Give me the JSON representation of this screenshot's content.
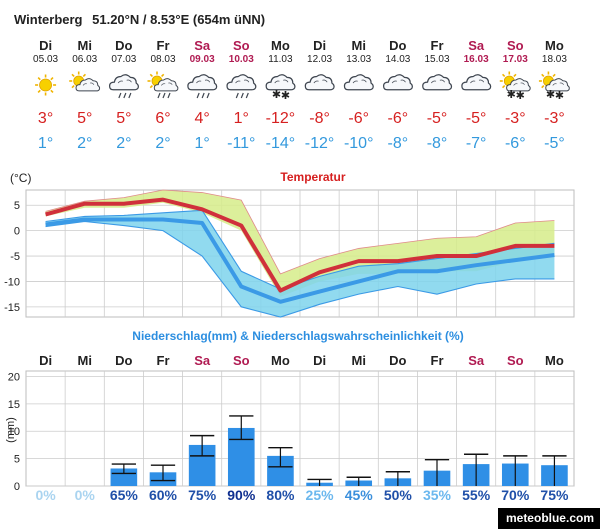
{
  "header": {
    "location": "Winterberg",
    "coords": "51.20°N / 8.53°E (654m üNN)"
  },
  "days": [
    {
      "name": "Di",
      "date": "05.03",
      "weekend": false,
      "icon": "sun-icon",
      "max": "3°",
      "min": "1°",
      "max_color": "#d62020",
      "min_color": "#3399dd"
    },
    {
      "name": "Mi",
      "date": "06.03",
      "weekend": false,
      "icon": "sun-cloud-icon",
      "max": "5°",
      "min": "2°",
      "max_color": "#d62020",
      "min_color": "#3399dd"
    },
    {
      "name": "Do",
      "date": "07.03",
      "weekend": false,
      "icon": "cloud-rain-icon",
      "max": "5°",
      "min": "2°",
      "max_color": "#d62020",
      "min_color": "#3399dd"
    },
    {
      "name": "Fr",
      "date": "08.03",
      "weekend": false,
      "icon": "sun-cloud-rain-icon",
      "max": "6°",
      "min": "2°",
      "max_color": "#d62020",
      "min_color": "#3399dd"
    },
    {
      "name": "Sa",
      "date": "09.03",
      "weekend": true,
      "icon": "cloud-rain-icon",
      "max": "4°",
      "min": "1°",
      "max_color": "#d62020",
      "min_color": "#3399dd"
    },
    {
      "name": "So",
      "date": "10.03",
      "weekend": true,
      "icon": "cloud-rain-icon",
      "max": "1°",
      "min": "-11°",
      "max_color": "#d62020",
      "min_color": "#3399dd"
    },
    {
      "name": "Mo",
      "date": "11.03",
      "weekend": false,
      "icon": "cloud-snow-icon",
      "max": "-12°",
      "min": "-14°",
      "max_color": "#d62020",
      "min_color": "#3399dd"
    },
    {
      "name": "Di",
      "date": "12.03",
      "weekend": false,
      "icon": "cloud-icon",
      "max": "-8°",
      "min": "-12°",
      "max_color": "#d62020",
      "min_color": "#3399dd"
    },
    {
      "name": "Mi",
      "date": "13.03",
      "weekend": false,
      "icon": "cloud-icon",
      "max": "-6°",
      "min": "-10°",
      "max_color": "#d62020",
      "min_color": "#3399dd"
    },
    {
      "name": "Do",
      "date": "14.03",
      "weekend": false,
      "icon": "cloud-icon",
      "max": "-6°",
      "min": "-8°",
      "max_color": "#d62020",
      "min_color": "#3399dd"
    },
    {
      "name": "Fr",
      "date": "15.03",
      "weekend": false,
      "icon": "cloud-icon",
      "max": "-5°",
      "min": "-8°",
      "max_color": "#d62020",
      "min_color": "#3399dd"
    },
    {
      "name": "Sa",
      "date": "16.03",
      "weekend": true,
      "icon": "cloud-icon",
      "max": "-5°",
      "min": "-7°",
      "max_color": "#d62020",
      "min_color": "#3399dd"
    },
    {
      "name": "So",
      "date": "17.03",
      "weekend": true,
      "icon": "sun-cloud-snow-icon",
      "max": "-3°",
      "min": "-6°",
      "max_color": "#d62020",
      "min_color": "#3399dd"
    },
    {
      "name": "Mo",
      "date": "18.03",
      "weekend": false,
      "icon": "sun-cloud-snow-icon",
      "max": "-3°",
      "min": "-5°",
      "max_color": "#d62020",
      "min_color": "#3399dd"
    }
  ],
  "chart_data": [
    {
      "type": "area",
      "title": "Temperatur",
      "ylabel": "(°C)",
      "ylim": [
        -17,
        8
      ],
      "yticks": [
        5,
        0,
        -5,
        -10,
        -15
      ],
      "categories": [
        "Di",
        "Mi",
        "Do",
        "Fr",
        "Sa",
        "So",
        "Mo",
        "Di",
        "Mi",
        "Do",
        "Fr",
        "Sa",
        "So",
        "Mo"
      ],
      "grid": true,
      "series": [
        {
          "values": [
            3.2,
            5.3,
            5.3,
            6.1,
            4.2,
            1.0,
            -11.8,
            -8.2,
            -6.0,
            -6.0,
            -5.0,
            -5.0,
            -3.0,
            -3.0
          ]
        },
        {
          "values": [
            3.8,
            5.8,
            6.5,
            8.0,
            7.5,
            6.0,
            -8.5,
            -5.5,
            -3.5,
            -2.5,
            -1.5,
            -1.2,
            1.5,
            2.0
          ]
        },
        {
          "values": [
            2.8,
            4.5,
            4.5,
            5.5,
            3.5,
            0.0,
            -13.0,
            -10.0,
            -8.5,
            -8.5,
            -8.0,
            -8.0,
            -6.0,
            -5.0
          ]
        },
        {
          "values": [
            1.2,
            2.2,
            2.2,
            2.2,
            1.5,
            -11.0,
            -14.0,
            -12.0,
            -10.0,
            -8.0,
            -8.0,
            -6.8,
            -5.8,
            -4.8
          ]
        },
        {
          "values": [
            1.8,
            2.8,
            3.0,
            3.5,
            4.0,
            -8.0,
            -11.5,
            -9.0,
            -7.0,
            -6.5,
            -5.5,
            -4.5,
            -3.5,
            -2.5
          ]
        },
        {
          "values": [
            0.8,
            1.8,
            1.0,
            0.0,
            -5.0,
            -15.0,
            -17.0,
            -14.5,
            -12.5,
            -11.0,
            -12.5,
            -10.5,
            -9.5,
            -9.5
          ]
        }
      ]
    },
    {
      "type": "bar",
      "title": "Niederschlag(mm) & Niederschlagswahrscheinlichkeit (%)",
      "ylabel": "(mm)",
      "ylim": [
        0,
        21
      ],
      "yticks": [
        20,
        15,
        10,
        5,
        0
      ],
      "categories": [
        "Di",
        "Mi",
        "Do",
        "Fr",
        "Sa",
        "So",
        "Mo",
        "Di",
        "Mi",
        "Do",
        "Fr",
        "Sa",
        "So",
        "Mo"
      ],
      "grid": true,
      "values": [
        0,
        0,
        3.2,
        2.5,
        7.5,
        10.6,
        5.5,
        0.6,
        1.0,
        1.4,
        2.8,
        4.0,
        4.1,
        3.8
      ],
      "range_low": [
        0,
        0,
        2.3,
        1.0,
        5.5,
        8.5,
        3.5,
        0,
        0,
        0,
        0,
        0,
        0,
        0
      ],
      "range_high": [
        0,
        0,
        4.0,
        3.8,
        9.2,
        12.8,
        7.0,
        1.2,
        1.6,
        2.6,
        4.8,
        5.8,
        5.5,
        5.5
      ],
      "probabilities": [
        "0%",
        "0%",
        "65%",
        "60%",
        "75%",
        "90%",
        "80%",
        "25%",
        "45%",
        "50%",
        "35%",
        "55%",
        "70%",
        "75%"
      ],
      "probability_colors": [
        "#aad4f0",
        "#aad4f0",
        "#1f4fa8",
        "#1f4fa8",
        "#1f4fa8",
        "#0f2f90",
        "#1f4fa8",
        "#6cb8ee",
        "#3b8fdc",
        "#1f4fa8",
        "#6cb8ee",
        "#1f4fa8",
        "#1f4fa8",
        "#1f4fa8"
      ]
    }
  ],
  "colors": {
    "text": "#222222",
    "weekend": "#b01b52",
    "title_red": "#d62020",
    "title_blue": "#2c8ee0",
    "red_line": "#d0303b",
    "blue_line": "#3b9ae6",
    "green_band": "#d6ec8a",
    "blue_band": "#7ed3ec",
    "bar": "#2f8fe6"
  },
  "brand": "meteoblue.com"
}
